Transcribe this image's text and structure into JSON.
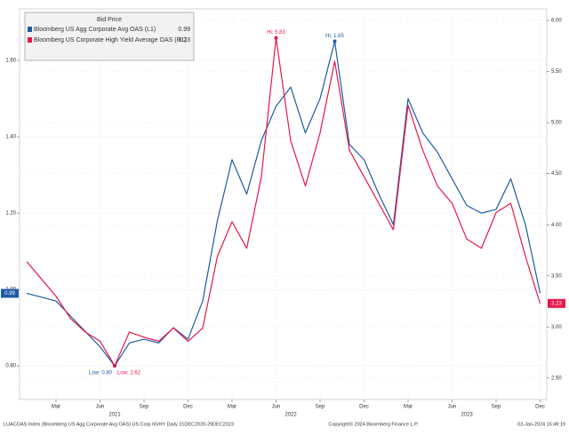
{
  "chart_data": {
    "type": "line",
    "title": "Bid Price",
    "x": [
      "2021-01",
      "2021-02",
      "2021-03",
      "2021-04",
      "2021-05",
      "2021-06",
      "2021-07",
      "2021-08",
      "2021-09",
      "2021-10",
      "2021-11",
      "2021-12",
      "2022-01",
      "2022-02",
      "2022-03",
      "2022-04",
      "2022-05",
      "2022-06",
      "2022-07",
      "2022-08",
      "2022-09",
      "2022-10",
      "2022-11",
      "2022-12",
      "2023-01",
      "2023-02",
      "2023-03",
      "2023-04",
      "2023-05",
      "2023-06",
      "2023-07",
      "2023-08",
      "2023-09",
      "2023-10",
      "2023-11",
      "2023-12"
    ],
    "series": [
      {
        "name": "Bloomberg US Agg Corporate Avg OAS  (L1)",
        "color": "#1f5aa6",
        "axis": "y",
        "last_label": "0.99",
        "hi_label": "Hi: 1.65",
        "low_label": "Low: 0.80",
        "values": [
          0.99,
          0.98,
          0.97,
          0.93,
          0.89,
          0.85,
          0.8,
          0.86,
          0.87,
          0.86,
          0.9,
          0.87,
          0.97,
          1.18,
          1.34,
          1.25,
          1.39,
          1.48,
          1.53,
          1.41,
          1.5,
          1.65,
          1.38,
          1.34,
          1.25,
          1.17,
          1.5,
          1.41,
          1.36,
          1.29,
          1.22,
          1.2,
          1.21,
          1.29,
          1.17,
          0.99
        ]
      },
      {
        "name": "Bloomberg US Corporate High Yield Average OAS  (R1)",
        "color": "#e8174a",
        "axis": "y2",
        "last_label": "3.23",
        "hi_label": "Hi: 5.83",
        "low_label": "Low: 2.62",
        "values": [
          3.64,
          3.47,
          3.3,
          3.08,
          2.95,
          2.86,
          2.62,
          2.95,
          2.9,
          2.86,
          2.99,
          2.86,
          2.99,
          3.69,
          4.03,
          3.77,
          4.47,
          5.83,
          4.82,
          4.38,
          4.9,
          5.6,
          4.73,
          4.47,
          4.21,
          3.95,
          5.17,
          4.73,
          4.38,
          4.21,
          3.86,
          3.77,
          4.12,
          4.21,
          3.69,
          3.23
        ]
      }
    ],
    "ylim": [
      0.712,
      1.735
    ],
    "yticks": [
      {
        "value": 0.8,
        "label": "0.80"
      },
      {
        "value": 1.0,
        "label": "1.00"
      },
      {
        "value": 1.2,
        "label": "1.20"
      },
      {
        "value": 1.4,
        "label": "1.40"
      },
      {
        "value": 1.6,
        "label": "1.60"
      }
    ],
    "y2lim": [
      2.29,
      6.113
    ],
    "y2ticks": [
      {
        "value": 2.5,
        "label": "2.50"
      },
      {
        "value": 3.0,
        "label": "3.00"
      },
      {
        "value": 3.5,
        "label": "3.50"
      },
      {
        "value": 4.0,
        "label": "4.00"
      },
      {
        "value": 4.5,
        "label": "4.50"
      },
      {
        "value": 5.0,
        "label": "5.00"
      },
      {
        "value": 5.5,
        "label": "5.50"
      },
      {
        "value": 6.0,
        "label": "6.00"
      }
    ],
    "xticks": [
      {
        "value": "2021-03",
        "label": "Mar"
      },
      {
        "value": "2021-06",
        "label": "Jun"
      },
      {
        "value": "2021-09",
        "label": "Sep"
      },
      {
        "value": "2021-12",
        "label": "Dec"
      },
      {
        "value": "2022-03",
        "label": "Mar"
      },
      {
        "value": "2022-06",
        "label": "Jun"
      },
      {
        "value": "2022-09",
        "label": "Sep"
      },
      {
        "value": "2022-12",
        "label": "Dec"
      },
      {
        "value": "2023-03",
        "label": "Mar"
      },
      {
        "value": "2023-06",
        "label": "Jun"
      },
      {
        "value": "2023-09",
        "label": "Sep"
      },
      {
        "value": "2023-12",
        "label": "Dec"
      }
    ],
    "year_labels": [
      {
        "value": "2021-07",
        "label": "2021"
      },
      {
        "value": "2022-07",
        "label": "2022"
      },
      {
        "value": "2023-07",
        "label": "2023"
      }
    ],
    "grid": true,
    "footer": {
      "left": "LUACOAS Index (Bloomberg US Agg Corporate Avg OAS) US Corp IG/HY  Daily 31DEC2020-29DEC2023",
      "center": "Copyright© 2024 Bloomberg Finance L.P.",
      "right": "02-Jan-2024 15:49:19"
    }
  }
}
